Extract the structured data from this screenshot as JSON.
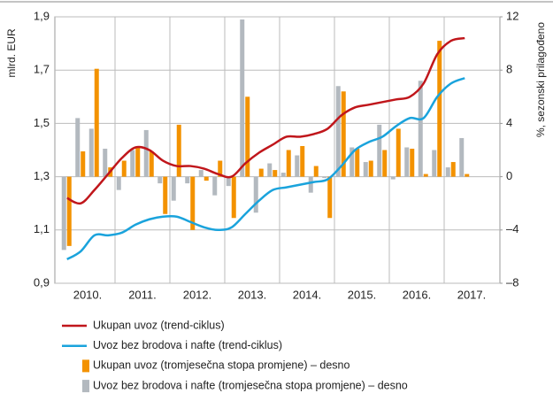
{
  "chart_data": {
    "type": "combo",
    "ylabel": "mlrd. EUR",
    "y2label": "%, sezonski prilagođeno",
    "year_labels": [
      "2010.",
      "2011.",
      "2012.",
      "2013.",
      "2014.",
      "2015.",
      "2016.",
      "2017."
    ],
    "categories": [
      null,
      null,
      null,
      null,
      null,
      null,
      null,
      null,
      null,
      null,
      null,
      null,
      null,
      null,
      null,
      null,
      null,
      null,
      null,
      null,
      null,
      null,
      null,
      null,
      null,
      null,
      null,
      null,
      null,
      null
    ],
    "ylim": [
      0.9,
      1.9
    ],
    "yticks": [
      {
        "value": 0.9,
        "label": "0,9"
      },
      {
        "value": 1.1,
        "label": "1,1"
      },
      {
        "value": 1.3,
        "label": "1,3"
      },
      {
        "value": 1.5,
        "label": "1,5"
      },
      {
        "value": 1.7,
        "label": "1,7"
      },
      {
        "value": 1.9,
        "label": "1,9"
      }
    ],
    "y2lim": [
      -8,
      12
    ],
    "y2ticks": [
      {
        "value": -8,
        "label": "–8"
      },
      {
        "value": -4,
        "label": "–4"
      },
      0,
      4,
      8,
      12
    ],
    "grid": true,
    "series": [
      {
        "name": "Ukupan uvoz (trend-ciklus)",
        "type": "line",
        "color": "#c0161b",
        "values": [
          1.22,
          1.2,
          1.25,
          1.31,
          1.37,
          1.41,
          1.4,
          1.36,
          1.34,
          1.34,
          1.33,
          1.31,
          1.3,
          1.35,
          1.39,
          1.42,
          1.45,
          1.45,
          1.46,
          1.48,
          1.53,
          1.56,
          1.57,
          1.58,
          1.59,
          1.6,
          1.65,
          1.76,
          1.81,
          1.82
        ]
      },
      {
        "name": "Uvoz bez brodova i nafte (trend-ciklus)",
        "type": "line",
        "color": "#1aa3dc",
        "values": [
          0.99,
          1.02,
          1.08,
          1.08,
          1.09,
          1.12,
          1.14,
          1.15,
          1.15,
          1.13,
          1.11,
          1.1,
          1.11,
          1.16,
          1.21,
          1.25,
          1.26,
          1.27,
          1.28,
          1.29,
          1.34,
          1.4,
          1.43,
          1.45,
          1.49,
          1.52,
          1.52,
          1.6,
          1.65,
          1.67
        ]
      },
      {
        "name": "Ukupan uvoz (tromjesečna stopa promjene) – desno",
        "type": "bar",
        "axis": "y2",
        "color": "#f39200",
        "values": [
          -5.2,
          1.9,
          8.1,
          0.7,
          1.2,
          2.2,
          1.9,
          -2.8,
          3.9,
          -4.0,
          -0.3,
          1.2,
          -3.1,
          6.0,
          0.6,
          0.5,
          2.0,
          2.3,
          0.8,
          -3.1,
          6.4,
          2.1,
          1.2,
          2.0,
          3.6,
          2.1,
          0.2,
          10.2,
          1.1,
          0.2
        ]
      },
      {
        "name": "Uvoz bez brodova i nafte (tromjesečna stopa promjene) – desno",
        "type": "bar",
        "axis": "y2",
        "color": "#b3b9bf",
        "values": [
          -5.5,
          4.4,
          3.6,
          2.1,
          -1.0,
          2.0,
          3.5,
          -0.5,
          -1.8,
          -0.5,
          0.5,
          -1.4,
          -0.7,
          11.8,
          -2.7,
          1.0,
          0.3,
          1.6,
          -1.2,
          -0.1,
          6.8,
          2.2,
          1.1,
          3.9,
          -0.2,
          2.2,
          7.2,
          2.0,
          0.7,
          2.9
        ]
      }
    ]
  }
}
